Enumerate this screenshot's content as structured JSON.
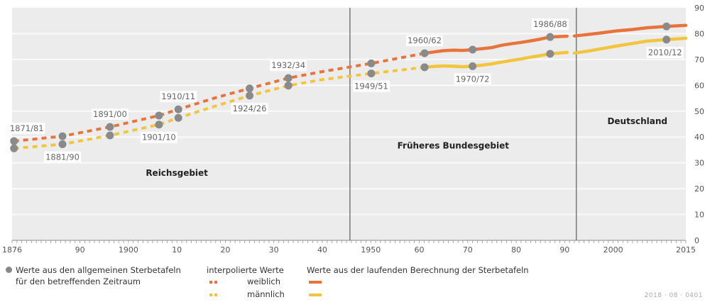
{
  "chart_data": {
    "type": "line",
    "title": "",
    "xlabel": "",
    "ylabel": "",
    "ylim": [
      0,
      90
    ],
    "xlim": [
      1876,
      2015
    ],
    "yticks": [
      0,
      10,
      20,
      30,
      40,
      50,
      60,
      70,
      80,
      90
    ],
    "xtick_labels": [
      {
        "year": 1876,
        "label": "1876"
      },
      {
        "year": 1890,
        "label": "90"
      },
      {
        "year": 1900,
        "label": "1900"
      },
      {
        "year": 1910,
        "label": "10"
      },
      {
        "year": 1920,
        "label": "20"
      },
      {
        "year": 1930,
        "label": "30"
      },
      {
        "year": 1940,
        "label": "40"
      },
      {
        "year": 1950,
        "label": "1950"
      },
      {
        "year": 1960,
        "label": "60"
      },
      {
        "year": 1970,
        "label": "70"
      },
      {
        "year": 1980,
        "label": "80"
      },
      {
        "year": 1990,
        "label": "90"
      },
      {
        "year": 2000,
        "label": "2000"
      },
      {
        "year": 2015,
        "label": "2015"
      }
    ],
    "grid": true,
    "y_axis_side": "right",
    "dividers": [
      1945.7,
      1992.4
    ],
    "regions": [
      {
        "label": "Reichsgebiet",
        "x": 1910,
        "y": 25
      },
      {
        "label": "Früheres Bundesgebiet",
        "x": 1967,
        "y": 35.5
      },
      {
        "label": "Deutschland",
        "x": 2005,
        "y": 45
      }
    ],
    "census_points": [
      {
        "label": "1871/81",
        "x": 1876.4,
        "weiblich": 38.4,
        "maennlich": 35.6,
        "label_pos": "above"
      },
      {
        "label": "1881/90",
        "x": 1886.4,
        "weiblich": 40.3,
        "maennlich": 37.2,
        "label_pos": "below"
      },
      {
        "label": "1891/00",
        "x": 1896.2,
        "weiblich": 43.9,
        "maennlich": 40.6,
        "label_pos": "above"
      },
      {
        "label": "1901/10",
        "x": 1906.3,
        "weiblich": 48.3,
        "maennlich": 44.8,
        "label_pos": "below"
      },
      {
        "label": "1910/11",
        "x": 1910.3,
        "weiblich": 50.7,
        "maennlich": 47.4,
        "label_pos": "above"
      },
      {
        "label": "1924/26",
        "x": 1925.0,
        "weiblich": 58.8,
        "maennlich": 56.0,
        "label_pos": "below"
      },
      {
        "label": "1932/34",
        "x": 1933.0,
        "weiblich": 62.8,
        "maennlich": 59.9,
        "label_pos": "above"
      },
      {
        "label": "1949/51",
        "x": 1950.1,
        "weiblich": 68.5,
        "maennlich": 64.6,
        "label_pos": "below"
      },
      {
        "label": "1960/62",
        "x": 1961.1,
        "weiblich": 72.4,
        "maennlich": 67.0,
        "label_pos": "above"
      },
      {
        "label": "1970/72",
        "x": 1971.0,
        "weiblich": 73.8,
        "maennlich": 67.4,
        "label_pos": "below"
      },
      {
        "label": "1986/88",
        "x": 1987.0,
        "weiblich": 78.7,
        "maennlich": 72.2,
        "label_pos": "above"
      },
      {
        "label": "2010/12",
        "x": 2011.0,
        "weiblich": 82.8,
        "maennlich": 77.7,
        "label_pos": "below"
      }
    ],
    "series": [
      {
        "name": "weiblich (interpoliert)",
        "style": "dashed",
        "color": "#e8743b",
        "points": [
          [
            1876.4,
            38.4
          ],
          [
            1886.4,
            40.3
          ],
          [
            1896.2,
            43.9
          ],
          [
            1906.3,
            48.3
          ],
          [
            1910.3,
            50.7
          ],
          [
            1918,
            55.2
          ],
          [
            1925.0,
            58.8
          ],
          [
            1933.0,
            62.8
          ],
          [
            1940,
            65.3
          ],
          [
            1950.1,
            68.5
          ],
          [
            1961.1,
            72.4
          ]
        ]
      },
      {
        "name": "männlich (interpoliert)",
        "style": "dashed",
        "color": "#f2c53d",
        "points": [
          [
            1876.4,
            35.6
          ],
          [
            1886.4,
            37.2
          ],
          [
            1896.2,
            40.6
          ],
          [
            1906.3,
            44.8
          ],
          [
            1910.3,
            47.4
          ],
          [
            1918,
            52.0
          ],
          [
            1925.0,
            56.0
          ],
          [
            1933.0,
            59.9
          ],
          [
            1940,
            62.2
          ],
          [
            1950.1,
            64.6
          ],
          [
            1961.1,
            67.0
          ]
        ]
      },
      {
        "name": "weiblich (laufende Berechnung, Früheres Bundesgebiet)",
        "style": "solid",
        "color": "#e8743b",
        "points": [
          [
            1961.1,
            72.4
          ],
          [
            1963,
            72.9
          ],
          [
            1965,
            73.4
          ],
          [
            1967,
            73.6
          ],
          [
            1969,
            73.5
          ],
          [
            1971.0,
            73.8
          ],
          [
            1973,
            74.2
          ],
          [
            1975,
            74.6
          ],
          [
            1977,
            75.5
          ],
          [
            1979,
            76.1
          ],
          [
            1981,
            76.6
          ],
          [
            1983,
            77.2
          ],
          [
            1985,
            77.9
          ],
          [
            1987.0,
            78.7
          ],
          [
            1989,
            78.9
          ],
          [
            1990.5,
            79.0
          ]
        ]
      },
      {
        "name": "männlich (laufende Berechnung, Früheres Bundesgebiet)",
        "style": "solid",
        "color": "#f2c53d",
        "points": [
          [
            1961.1,
            67.0
          ],
          [
            1963,
            67.3
          ],
          [
            1965,
            67.5
          ],
          [
            1967,
            67.4
          ],
          [
            1969,
            67.2
          ],
          [
            1971.0,
            67.4
          ],
          [
            1973,
            67.8
          ],
          [
            1975,
            68.3
          ],
          [
            1977,
            69.0
          ],
          [
            1979,
            69.6
          ],
          [
            1981,
            70.2
          ],
          [
            1983,
            70.9
          ],
          [
            1985,
            71.5
          ],
          [
            1987.0,
            72.2
          ],
          [
            1989,
            72.5
          ],
          [
            1990.5,
            72.7
          ]
        ]
      },
      {
        "name": "weiblich (laufende Berechnung, Deutschland)",
        "style": "solid",
        "color": "#e8743b",
        "points": [
          [
            1992,
            79.1
          ],
          [
            1995,
            79.7
          ],
          [
            1998,
            80.4
          ],
          [
            2001,
            81.1
          ],
          [
            2004,
            81.6
          ],
          [
            2007,
            82.3
          ],
          [
            2011.0,
            82.8
          ],
          [
            2015,
            83.2
          ]
        ]
      },
      {
        "name": "männlich (laufende Berechnung, Deutschland)",
        "style": "solid",
        "color": "#f2c53d",
        "points": [
          [
            1992,
            72.5
          ],
          [
            1995,
            73.3
          ],
          [
            1998,
            74.3
          ],
          [
            2001,
            75.3
          ],
          [
            2004,
            76.2
          ],
          [
            2007,
            77.1
          ],
          [
            2011.0,
            77.7
          ],
          [
            2015,
            78.2
          ]
        ]
      }
    ]
  },
  "legend": {
    "dot_line1": "Werte aus den allgemeinen Sterbetafeln",
    "dot_line2": "für den betreffenden Zeitraum",
    "interp_title": "interpolierte Werte",
    "female_label": "weiblich",
    "male_label": "männlich",
    "running_title": "Werte aus der laufenden Berechnung der Sterbetafeln"
  },
  "colors": {
    "female": "#e8743b",
    "male": "#f2c53d",
    "point": "#8a8a8a",
    "plot_bg": "#ececec",
    "divider": "#777777"
  },
  "source_id": "2018 · 08 · 0401"
}
